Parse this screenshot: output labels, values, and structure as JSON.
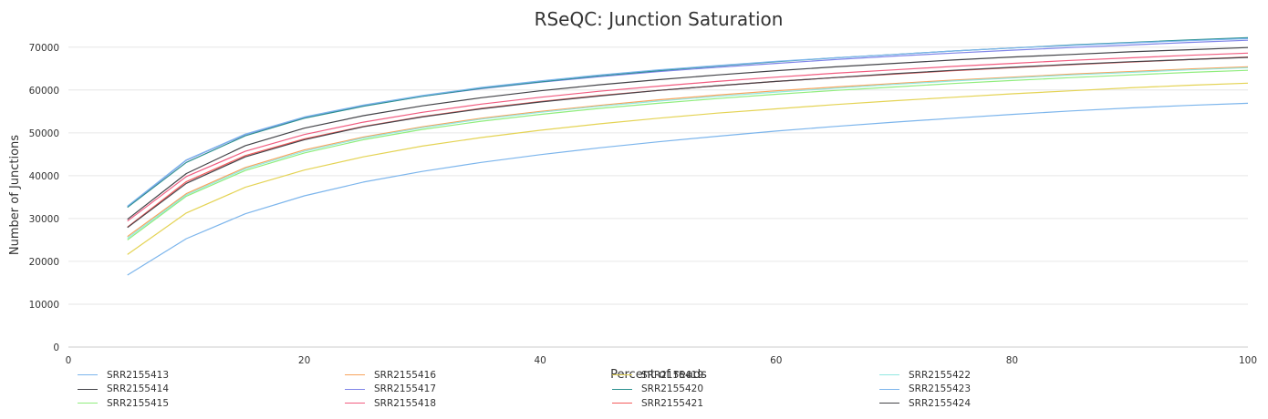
{
  "chart_data": {
    "type": "line",
    "title": "RSeQC: Junction Saturation",
    "xlabel": "Percent of reads",
    "ylabel": "Number of Junctions",
    "xlim": [
      0,
      100
    ],
    "ylim": [
      0,
      72500
    ],
    "xticks": [
      0,
      20,
      40,
      60,
      80,
      100
    ],
    "yticks": [
      0,
      10000,
      20000,
      30000,
      40000,
      50000,
      60000,
      70000
    ],
    "grid": "horizontal",
    "legend_position": "bottom",
    "x": [
      5,
      10,
      15,
      20,
      25,
      30,
      35,
      40,
      45,
      50,
      55,
      60,
      65,
      70,
      75,
      80,
      85,
      90,
      95,
      100
    ],
    "series": [
      {
        "name": "SRR2155413",
        "color": "#7cb5ec",
        "values": [
          16800,
          25300,
          31100,
          35300,
          38500,
          41000,
          43100,
          44900,
          46500,
          47900,
          49200,
          50400,
          51500,
          52500,
          53400,
          54300,
          55100,
          55800,
          56400,
          56900
        ]
      },
      {
        "name": "SRR2155414",
        "color": "#434348",
        "values": [
          29800,
          40500,
          47000,
          51100,
          54000,
          56300,
          58200,
          59800,
          61200,
          62400,
          63500,
          64500,
          65400,
          66200,
          67000,
          67700,
          68300,
          68900,
          69400,
          69900
        ]
      },
      {
        "name": "SRR2155415",
        "color": "#90ed7d",
        "values": [
          25000,
          35200,
          41200,
          45300,
          48400,
          50800,
          52700,
          54300,
          55700,
          56900,
          58000,
          59000,
          59900,
          60700,
          61500,
          62200,
          62900,
          63500,
          64100,
          64600
        ]
      },
      {
        "name": "SRR2155416",
        "color": "#f7a35c",
        "values": [
          25800,
          35800,
          41900,
          46000,
          49000,
          51400,
          53400,
          55000,
          56400,
          57700,
          58800,
          59800,
          60700,
          61500,
          62300,
          63000,
          63700,
          64300,
          64900,
          65400
        ]
      },
      {
        "name": "SRR2155417",
        "color": "#8085e9",
        "values": [
          32700,
          43600,
          49600,
          53500,
          56300,
          58500,
          60300,
          61800,
          63100,
          64300,
          65300,
          66200,
          67100,
          67900,
          68600,
          69300,
          69900,
          70500,
          71100,
          71600
        ]
      },
      {
        "name": "SRR2155418",
        "color": "#f15c80",
        "values": [
          29400,
          39800,
          45700,
          49600,
          52500,
          54800,
          56700,
          58300,
          59700,
          60900,
          62000,
          63000,
          63900,
          64700,
          65500,
          66200,
          66900,
          67500,
          68100,
          68600
        ]
      },
      {
        "name": "SRR2155419",
        "color": "#e4d354",
        "values": [
          21600,
          31300,
          37300,
          41300,
          44400,
          46900,
          48900,
          50600,
          52100,
          53400,
          54600,
          55600,
          56600,
          57500,
          58300,
          59100,
          59800,
          60500,
          61100,
          61600
        ]
      },
      {
        "name": "SRR2155420",
        "color": "#2b908f",
        "values": [
          32600,
          43100,
          49300,
          53400,
          56200,
          58500,
          60400,
          61900,
          63300,
          64500,
          65600,
          66600,
          67500,
          68300,
          69100,
          69800,
          70500,
          71100,
          71700,
          72200
        ]
      },
      {
        "name": "SRR2155421",
        "color": "#f45b5b",
        "values": [
          28000,
          38600,
          44700,
          48600,
          51500,
          53800,
          55700,
          57300,
          58700,
          59900,
          61000,
          62000,
          62900,
          63700,
          64500,
          65200,
          65900,
          66500,
          67100,
          67700
        ]
      },
      {
        "name": "SRR2155422",
        "color": "#91e8e1",
        "values": [
          25400,
          35500,
          41600,
          45700,
          48800,
          51200,
          53200,
          54800,
          56200,
          57400,
          58500,
          59500,
          60400,
          61300,
          62100,
          62800,
          63500,
          64100,
          64700,
          65200
        ]
      },
      {
        "name": "SRR2155423",
        "color": "#7cb5ec",
        "values": [
          32900,
          43700,
          49700,
          53700,
          56500,
          58700,
          60600,
          62100,
          63500,
          64700,
          65700,
          66700,
          67500,
          68300,
          69100,
          69800,
          70400,
          71000,
          71500,
          72000
        ]
      },
      {
        "name": "SRR2155424",
        "color": "#434348",
        "values": [
          27900,
          38200,
          44400,
          48400,
          51400,
          53700,
          55600,
          57200,
          58600,
          59900,
          61000,
          62000,
          62900,
          63800,
          64600,
          65300,
          66000,
          66600,
          67100,
          67600
        ]
      }
    ]
  }
}
